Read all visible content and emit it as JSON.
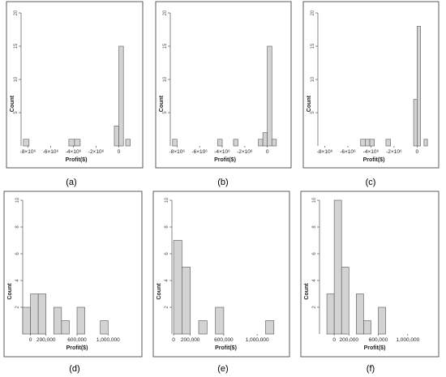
{
  "chart_data": [
    {
      "panel": "(a)",
      "type": "bar",
      "xlabel": "Profit($)",
      "ylabel": "Count",
      "ylim": [
        0,
        20
      ],
      "yticks": [
        "5",
        "10",
        "15",
        "20"
      ],
      "xlim": [
        -8600000,
        1100000
      ],
      "xticks": [
        {
          "value": -8000000,
          "label": "-8×10⁶"
        },
        {
          "value": -6000000,
          "label": "-6×10⁶"
        },
        {
          "value": -4000000,
          "label": "-4×10⁶"
        },
        {
          "value": -2000000,
          "label": "-2×10⁶"
        },
        {
          "value": 0,
          "label": "0"
        }
      ],
      "bins": [
        {
          "x0": -8400000,
          "x1": -7900000,
          "count": 1
        },
        {
          "x0": -4400000,
          "x1": -3900000,
          "count": 1
        },
        {
          "x0": -3900000,
          "x1": -3400000,
          "count": 1
        },
        {
          "x0": -400000,
          "x1": 0,
          "count": 3
        },
        {
          "x0": 0,
          "x1": 400000,
          "count": 15
        },
        {
          "x0": 600000,
          "x1": 1000000,
          "count": 1
        }
      ],
      "grid": false
    },
    {
      "panel": "(b)",
      "type": "bar",
      "xlabel": "Profit($)",
      "ylabel": "Count",
      "ylim": [
        0,
        20
      ],
      "yticks": [
        "5",
        "10",
        "15",
        "20"
      ],
      "xlim": [
        -8600000,
        1100000
      ],
      "xticks": [
        {
          "value": -8000000,
          "label": "-8×10⁶"
        },
        {
          "value": -6000000,
          "label": "-6×10⁶"
        },
        {
          "value": -4000000,
          "label": "-4×10⁶"
        },
        {
          "value": -2000000,
          "label": "-2×10⁶"
        },
        {
          "value": 0,
          "label": "0"
        }
      ],
      "bins": [
        {
          "x0": -8400000,
          "x1": -8000000,
          "count": 1
        },
        {
          "x0": -4400000,
          "x1": -4000000,
          "count": 1
        },
        {
          "x0": -3000000,
          "x1": -2600000,
          "count": 1
        },
        {
          "x0": -800000,
          "x1": -400000,
          "count": 1
        },
        {
          "x0": -400000,
          "x1": 0,
          "count": 2
        },
        {
          "x0": 0,
          "x1": 400000,
          "count": 15
        },
        {
          "x0": 400000,
          "x1": 800000,
          "count": 1
        }
      ],
      "grid": false
    },
    {
      "panel": "(c)",
      "type": "bar",
      "xlabel": "Profit($)",
      "ylabel": "Count",
      "ylim": [
        0,
        20
      ],
      "yticks": [
        "5",
        "10",
        "15",
        "20"
      ],
      "xlim": [
        -8600000,
        1100000
      ],
      "xticks": [
        {
          "value": -8000000,
          "label": "-8×10⁶"
        },
        {
          "value": -6000000,
          "label": "-6×10⁶"
        },
        {
          "value": -4000000,
          "label": "-4×10⁶"
        },
        {
          "value": -2000000,
          "label": "-2×10⁶"
        },
        {
          "value": 0,
          "label": "0"
        }
      ],
      "bins": [
        {
          "x0": -4900000,
          "x1": -4500000,
          "count": 1
        },
        {
          "x0": -4500000,
          "x1": -4100000,
          "count": 1
        },
        {
          "x0": -4100000,
          "x1": -3700000,
          "count": 1
        },
        {
          "x0": -2700000,
          "x1": -2300000,
          "count": 1
        },
        {
          "x0": -300000,
          "x1": 0,
          "count": 7
        },
        {
          "x0": 0,
          "x1": 300000,
          "count": 18
        },
        {
          "x0": 600000,
          "x1": 900000,
          "count": 1
        }
      ],
      "grid": false
    },
    {
      "panel": "(d)",
      "type": "bar",
      "xlabel": "Profit($)",
      "ylabel": "Count",
      "ylim": [
        0,
        10
      ],
      "yticks": [
        "2",
        "4",
        "6",
        "8",
        "10"
      ],
      "xlim": [
        -100000,
        1300000
      ],
      "xticks": [
        {
          "value": 0,
          "label": "0"
        },
        {
          "value": 200000,
          "label": "200,000"
        },
        {
          "value": 600000,
          "label": "600,000"
        },
        {
          "value": 1000000,
          "label": "1,000,000"
        }
      ],
      "bins": [
        {
          "x0": -100000,
          "x1": 0,
          "count": 2
        },
        {
          "x0": 0,
          "x1": 100000,
          "count": 3
        },
        {
          "x0": 100000,
          "x1": 200000,
          "count": 3
        },
        {
          "x0": 300000,
          "x1": 400000,
          "count": 2
        },
        {
          "x0": 400000,
          "x1": 500000,
          "count": 1
        },
        {
          "x0": 600000,
          "x1": 700000,
          "count": 2
        },
        {
          "x0": 900000,
          "x1": 1000000,
          "count": 1
        }
      ],
      "grid": false
    },
    {
      "panel": "(e)",
      "type": "bar",
      "xlabel": "Profit($)",
      "ylabel": "Count",
      "ylim": [
        0,
        10
      ],
      "yticks": [
        "2",
        "4",
        "6",
        "8",
        "10"
      ],
      "xlim": [
        -20000,
        1270000
      ],
      "xticks": [
        {
          "value": 0,
          "label": "0"
        },
        {
          "value": 200000,
          "label": "200,000"
        },
        {
          "value": 600000,
          "label": "600,000"
        },
        {
          "value": 1000000,
          "label": "1,000,000"
        }
      ],
      "bins": [
        {
          "x0": 0,
          "x1": 100000,
          "count": 7
        },
        {
          "x0": 100000,
          "x1": 200000,
          "count": 5
        },
        {
          "x0": 300000,
          "x1": 400000,
          "count": 1
        },
        {
          "x0": 500000,
          "x1": 600000,
          "count": 2
        },
        {
          "x0": 1100000,
          "x1": 1200000,
          "count": 1
        }
      ],
      "grid": false
    },
    {
      "panel": "(f)",
      "type": "bar",
      "xlabel": "Profit($)",
      "ylabel": "Count",
      "ylim": [
        0,
        10
      ],
      "yticks": [
        "2",
        "4",
        "6",
        "8",
        "10"
      ],
      "xlim": [
        -200000,
        1300000
      ],
      "xticks": [
        {
          "value": 0,
          "label": "0"
        },
        {
          "value": 200000,
          "label": "200,000"
        },
        {
          "value": 600000,
          "label": "600,000"
        },
        {
          "value": 1000000,
          "label": "1,000,000"
        }
      ],
      "bins": [
        {
          "x0": -100000,
          "x1": 0,
          "count": 3
        },
        {
          "x0": 0,
          "x1": 100000,
          "count": 10
        },
        {
          "x0": 100000,
          "x1": 200000,
          "count": 5
        },
        {
          "x0": 300000,
          "x1": 400000,
          "count": 3
        },
        {
          "x0": 400000,
          "x1": 500000,
          "count": 1
        },
        {
          "x0": 600000,
          "x1": 700000,
          "count": 2
        }
      ],
      "grid": false
    }
  ]
}
